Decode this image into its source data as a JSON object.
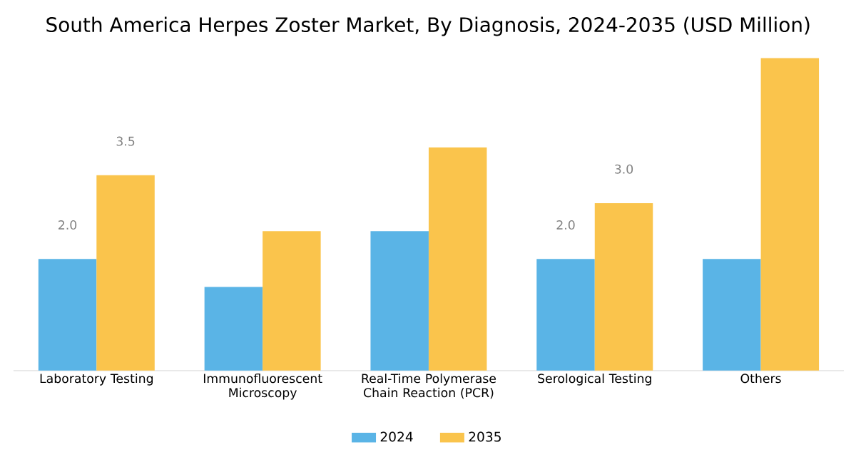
{
  "chart_data": {
    "type": "bar",
    "title": "South America Herpes Zoster Market, By Diagnosis, 2024-2035 (USD Million)",
    "categories": [
      "Laboratory Testing",
      "Immunofluorescent Microscopy",
      "Real-Time Polymerase Chain Reaction (PCR)",
      "Serological Testing",
      "Others"
    ],
    "series": [
      {
        "name": "2024",
        "color": "#5ab4e6",
        "values": [
          2.0,
          1.5,
          2.5,
          2.0,
          2.0
        ],
        "value_labels": [
          "2.0",
          null,
          null,
          "2.0",
          null
        ]
      },
      {
        "name": "2035",
        "color": "#fac44c",
        "values": [
          3.5,
          2.5,
          4.0,
          3.0,
          5.6
        ],
        "value_labels": [
          "3.5",
          null,
          null,
          "3.0",
          null
        ]
      }
    ],
    "legend": "bottom"
  }
}
